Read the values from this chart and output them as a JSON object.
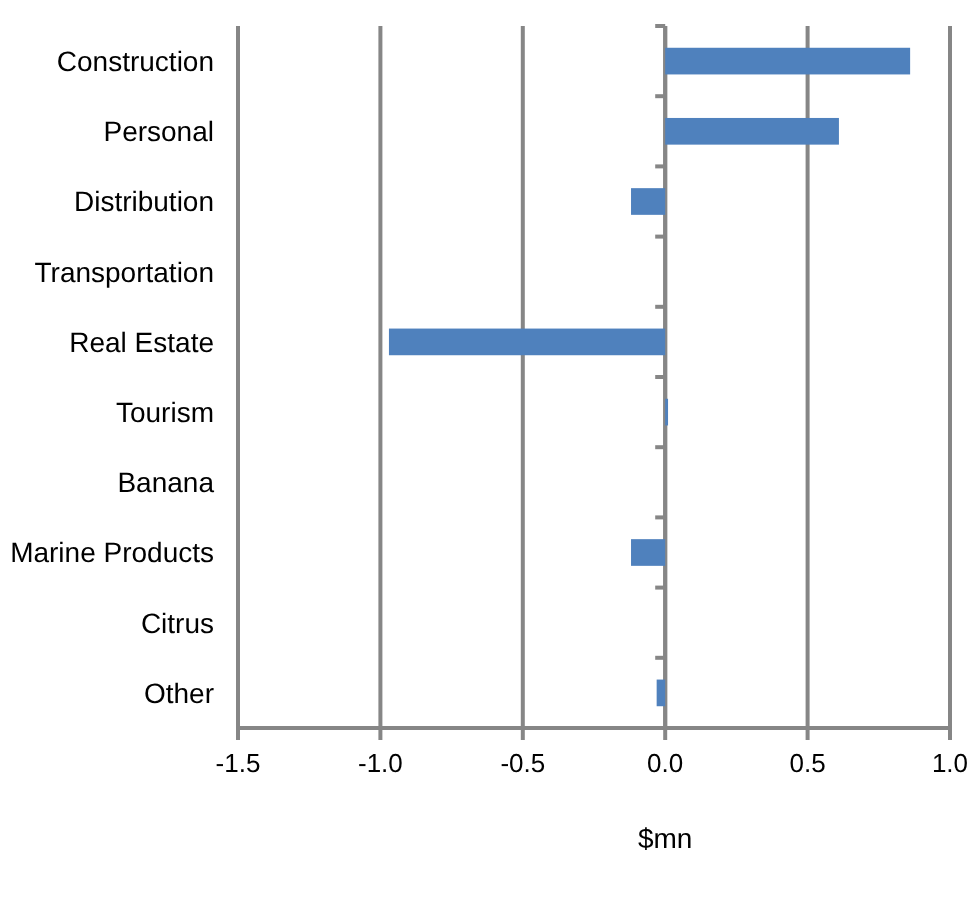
{
  "chart_data": {
    "type": "bar",
    "orientation": "horizontal",
    "xlabel": "$mn",
    "categories": [
      "Construction",
      "Personal",
      "Distribution",
      "Transportation",
      "Real Estate",
      "Tourism",
      "Banana",
      "Marine Products",
      "Citrus",
      "Other"
    ],
    "values": [
      0.86,
      0.61,
      -0.12,
      0,
      -0.97,
      0.01,
      0,
      -0.12,
      0,
      -0.03
    ],
    "color": "#4f81bd",
    "xlim": [
      -1.5,
      1.0
    ],
    "xticks": [
      {
        "value": -1.5,
        "label": "-1.5"
      },
      {
        "value": -1.0,
        "label": "-1.0"
      },
      {
        "value": -0.5,
        "label": "-0.5"
      },
      {
        "value": 0,
        "label": "0.0"
      },
      {
        "value": 0.5,
        "label": "0.5"
      },
      {
        "value": 1.0,
        "label": "1.0"
      }
    ],
    "grid": "x"
  }
}
